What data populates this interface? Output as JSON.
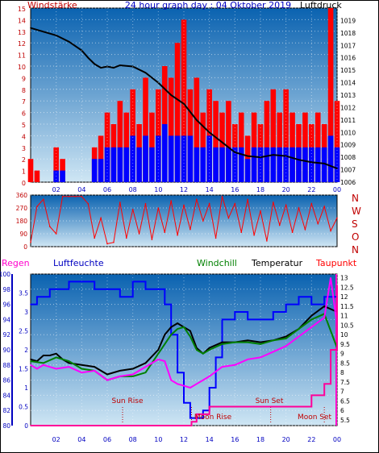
{
  "header": {
    "title": "24 hour graph day : 04 Oktober 2019",
    "left_label": "Windstärke",
    "right_label": "Luftdruck"
  },
  "panel2": {
    "compass_labels": [
      "N",
      "W",
      "S",
      "O",
      "N"
    ]
  },
  "panel3_labels": {
    "regen": "Regen",
    "luftfeuchte": "Luftfeuchte",
    "windchill": "Windchill",
    "temperatur": "Temperatur",
    "taupunkt": "Taupunkt"
  },
  "astro": {
    "sun_rise": "Sun Rise",
    "sun_set": "Sun Set",
    "moon_rise": "Moon Rise",
    "moon_set": "Moon Set"
  },
  "colors": {
    "wind_gust": "#ff0000",
    "wind_avg": "#0000ff",
    "pressure": "#000000",
    "direction": "#ff0000",
    "humidity": "#0000ff",
    "temperature": "#000000",
    "windchill": "#008000",
    "dewpoint": "#ff00ff",
    "rain": "#ff0099",
    "bg_top": "#0a62b0",
    "bg_bottom": "#cfe6f4"
  },
  "chart_data": [
    {
      "type": "line",
      "x_ticks": [
        "02",
        "04",
        "06",
        "08",
        "10",
        "12",
        "14",
        "16",
        "18",
        "20",
        "22",
        "00"
      ],
      "y_left_ticks": [
        0,
        1,
        2,
        3,
        4,
        5,
        6,
        7,
        8,
        9,
        10,
        11,
        12,
        13,
        14,
        15
      ],
      "y_left_lim": [
        0,
        15
      ],
      "y_right_ticks": [
        1006,
        1007,
        1008,
        1009,
        1010,
        1011,
        1012,
        1013,
        1014,
        1015,
        1016,
        1017,
        1018,
        1019
      ],
      "y_right_lim": [
        1006,
        1020
      ],
      "series": [
        {
          "axis": "right",
          "x": [
            0,
            1,
            2,
            3,
            4,
            4.5,
            5,
            5.5,
            6,
            6.5,
            7,
            8,
            9,
            10,
            11,
            12,
            13,
            14,
            15,
            16,
            17,
            18,
            19,
            20,
            21,
            22,
            23,
            24
          ],
          "values": [
            1018.4,
            1018.1,
            1017.8,
            1017.3,
            1016.6,
            1016.0,
            1015.5,
            1015.2,
            1015.3,
            1015.2,
            1015.4,
            1015.3,
            1014.8,
            1014.0,
            1013.0,
            1012.3,
            1011.0,
            1010.0,
            1009.2,
            1008.4,
            1008.1,
            1008.0,
            1008.2,
            1008.1,
            1007.8,
            1007.6,
            1007.5,
            1007.1
          ]
        },
        {
          "axis": "left",
          "style": "bars",
          "color_key": "wind_gust",
          "x": [
            0,
            0.5,
            1,
            1.5,
            2,
            2.5,
            3,
            3.5,
            4,
            4.5,
            5,
            5.5,
            6,
            6.5,
            7,
            7.5,
            8,
            8.5,
            9,
            9.5,
            10,
            10.5,
            11,
            11.5,
            12,
            12.5,
            13,
            13.5,
            14,
            14.5,
            15,
            15.5,
            16,
            16.5,
            17,
            17.5,
            18,
            18.5,
            19,
            19.5,
            20,
            20.5,
            21,
            21.5,
            22,
            22.5,
            23,
            23.5,
            24
          ],
          "values": [
            2,
            1,
            0,
            0,
            3,
            2,
            0,
            0,
            0,
            0,
            3,
            4,
            6,
            5,
            7,
            6,
            8,
            5,
            9,
            6,
            8,
            10,
            9,
            12,
            14,
            8,
            9,
            6,
            8,
            7,
            6,
            7,
            5,
            6,
            4,
            6,
            5,
            7,
            8,
            6,
            8,
            6,
            5,
            6,
            5,
            6,
            5,
            15,
            7
          ]
        },
        {
          "axis": "left",
          "style": "bars",
          "color_key": "wind_avg",
          "x": [
            0,
            0.5,
            1,
            1.5,
            2,
            2.5,
            3,
            3.5,
            4,
            4.5,
            5,
            5.5,
            6,
            6.5,
            7,
            7.5,
            8,
            8.5,
            9,
            9.5,
            10,
            10.5,
            11,
            11.5,
            12,
            12.5,
            13,
            13.5,
            14,
            14.5,
            15,
            15.5,
            16,
            16.5,
            17,
            17.5,
            18,
            18.5,
            19,
            19.5,
            20,
            20.5,
            21,
            21.5,
            22,
            22.5,
            23,
            23.5,
            24
          ],
          "values": [
            0,
            0,
            0,
            0,
            1,
            1,
            0,
            0,
            0,
            0,
            2,
            2,
            3,
            3,
            3,
            3,
            4,
            3,
            4,
            3,
            4,
            5,
            4,
            4,
            4,
            4,
            3,
            3,
            4,
            3,
            3,
            3,
            3,
            3,
            2,
            3,
            3,
            3,
            3,
            3,
            3,
            3,
            3,
            3,
            3,
            3,
            3,
            4,
            3
          ]
        }
      ]
    },
    {
      "type": "line",
      "x_ticks": [
        "02",
        "04",
        "06",
        "08",
        "10",
        "12",
        "14",
        "16",
        "18",
        "20",
        "22",
        "00"
      ],
      "y_ticks": [
        0,
        90,
        180,
        270,
        360
      ],
      "y_lim": [
        0,
        360
      ],
      "series": [
        {
          "x": [
            0,
            0.5,
            1,
            1.5,
            2,
            2.5,
            3,
            3.5,
            4,
            4.5,
            5,
            5.5,
            6,
            6.5,
            7,
            7.5,
            8,
            8.5,
            9,
            9.5,
            10,
            10.5,
            11,
            11.5,
            12,
            12.5,
            13,
            13.5,
            14,
            14.5,
            15,
            15.5,
            16,
            16.5,
            17,
            17.5,
            18,
            18.5,
            19,
            19.5,
            20,
            20.5,
            21,
            21.5,
            22,
            22.5,
            23,
            23.5,
            24
          ],
          "values": [
            30,
            280,
            330,
            140,
            90,
            350,
            350,
            350,
            350,
            300,
            60,
            200,
            20,
            30,
            310,
            60,
            260,
            90,
            300,
            50,
            270,
            100,
            320,
            80,
            290,
            120,
            330,
            180,
            300,
            60,
            350,
            200,
            300,
            100,
            330,
            80,
            250,
            40,
            310,
            150,
            290,
            100,
            270,
            120,
            300,
            160,
            280,
            110,
            200
          ]
        }
      ]
    },
    {
      "type": "line",
      "x_ticks": [
        "02",
        "04",
        "06",
        "08",
        "10",
        "12",
        "14",
        "16",
        "18",
        "20",
        "22",
        "00"
      ],
      "y_left_ticks": [
        80,
        82,
        84,
        86,
        88,
        90,
        92,
        94,
        96,
        98,
        100
      ],
      "y_left_lim": [
        80,
        100
      ],
      "y_left2_ticks": [
        0,
        0.5,
        1,
        1.5,
        2,
        2.5,
        3,
        3.5
      ],
      "y_right_ticks": [
        5.5,
        6,
        6.5,
        7,
        7.5,
        8,
        8.5,
        9,
        9.5,
        10,
        10.5,
        11,
        11.5,
        12,
        12.5,
        13
      ],
      "y_right_lim": [
        5.2,
        13.2
      ],
      "series": [
        {
          "key": "humidity",
          "axis": "left",
          "x": [
            0,
            0.5,
            1,
            1.5,
            2,
            3,
            4,
            5,
            6,
            7,
            8,
            9,
            10,
            10.5,
            11,
            11.5,
            12,
            12.5,
            13,
            13.5,
            14,
            14.5,
            15,
            16,
            17,
            18,
            19,
            20,
            21,
            22,
            23,
            24
          ],
          "values": [
            96,
            97,
            97,
            98,
            98,
            99,
            99,
            98,
            98,
            97,
            99,
            98,
            98,
            96,
            92,
            87,
            83,
            81,
            81,
            82,
            85,
            89,
            94,
            95,
            94,
            94,
            95,
            96,
            97,
            96,
            97,
            95
          ]
        },
        {
          "key": "temperature",
          "axis": "right",
          "x": [
            0,
            0.5,
            1,
            1.5,
            2,
            2.5,
            3,
            4,
            5,
            6,
            7,
            8,
            9,
            10,
            10.5,
            11,
            11.5,
            12,
            12.5,
            13,
            13.5,
            14,
            15,
            16,
            17,
            18,
            19,
            20,
            21,
            22,
            23,
            24
          ],
          "values": [
            8.7,
            8.6,
            8.9,
            8.9,
            9.0,
            8.7,
            8.5,
            8.4,
            8.3,
            7.9,
            8.1,
            8.2,
            8.5,
            9.2,
            10.0,
            10.4,
            10.6,
            10.4,
            10.2,
            9.3,
            9.0,
            9.3,
            9.6,
            9.6,
            9.7,
            9.6,
            9.7,
            9.9,
            10.3,
            11.0,
            11.5,
            11.2
          ]
        },
        {
          "key": "windchill",
          "axis": "right",
          "x": [
            0,
            1,
            2,
            3,
            4,
            5,
            6,
            7,
            8,
            9,
            10,
            10.5,
            11,
            11.5,
            12,
            12.5,
            13,
            13.5,
            14,
            15,
            16,
            17,
            18,
            19,
            20,
            21,
            22,
            23,
            24
          ],
          "values": [
            8.6,
            8.5,
            8.8,
            8.6,
            8.2,
            8.1,
            7.6,
            7.8,
            7.8,
            8.0,
            9.0,
            9.5,
            10.0,
            10.3,
            10.4,
            9.9,
            9.2,
            9.0,
            9.2,
            9.5,
            9.6,
            9.6,
            9.5,
            9.7,
            9.8,
            10.3,
            10.8,
            11.1,
            9.3
          ]
        },
        {
          "key": "dewpoint",
          "axis": "right",
          "x": [
            0,
            0.5,
            1,
            2,
            3,
            4,
            5,
            6,
            7,
            8,
            9,
            10,
            10.5,
            11,
            11.5,
            12,
            12.5,
            13,
            13.5,
            14,
            15,
            16,
            17,
            18,
            19,
            20,
            21,
            22,
            23,
            23.5,
            24
          ],
          "values": [
            8.4,
            8.2,
            8.4,
            8.2,
            8.3,
            8.0,
            8.1,
            7.6,
            7.8,
            7.9,
            8.3,
            8.7,
            8.6,
            7.6,
            7.4,
            7.3,
            7.2,
            7.4,
            7.6,
            7.8,
            8.3,
            8.4,
            8.7,
            8.8,
            9.1,
            9.4,
            9.9,
            10.4,
            10.9,
            13.0,
            10.5
          ]
        },
        {
          "key": "rain",
          "axis": "left2",
          "x": [
            0,
            12.5,
            12.6,
            13,
            13.5,
            14,
            18,
            19,
            21,
            22,
            23,
            23.5,
            24
          ],
          "values": [
            0,
            0,
            0.1,
            0.3,
            0.3,
            0.5,
            0.5,
            0.5,
            0.5,
            0.8,
            1.1,
            2.0,
            3.7
          ]
        }
      ]
    }
  ]
}
